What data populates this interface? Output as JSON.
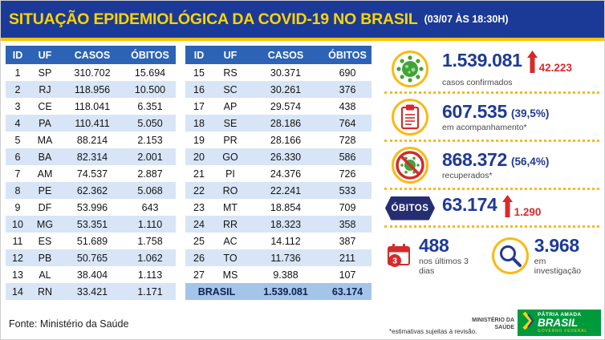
{
  "header": {
    "title": "SITUAÇÃO EPIDEMIOLÓGICA DA COVID-19 NO BRASIL",
    "timestamp": "(03/07 ÀS 18:30H)"
  },
  "chart_data": {
    "type": "table",
    "title": "SITUAÇÃO EPIDEMIOLÓGICA DA COVID-19 NO BRASIL",
    "subtitle": "(03/07 ÀS 18:30H)",
    "columns": [
      "ID",
      "UF",
      "CASOS",
      "ÓBITOS"
    ],
    "rows": [
      [
        "1",
        "SP",
        "310.702",
        "15.694"
      ],
      [
        "2",
        "RJ",
        "118.956",
        "10.500"
      ],
      [
        "3",
        "CE",
        "118.041",
        "6.351"
      ],
      [
        "4",
        "PA",
        "110.411",
        "5.050"
      ],
      [
        "5",
        "MA",
        "88.214",
        "2.153"
      ],
      [
        "6",
        "BA",
        "82.314",
        "2.001"
      ],
      [
        "7",
        "AM",
        "74.537",
        "2.887"
      ],
      [
        "8",
        "PE",
        "62.362",
        "5.068"
      ],
      [
        "9",
        "DF",
        "53.996",
        "643"
      ],
      [
        "10",
        "MG",
        "53.351",
        "1.110"
      ],
      [
        "11",
        "ES",
        "51.689",
        "1.758"
      ],
      [
        "12",
        "PB",
        "50.765",
        "1.062"
      ],
      [
        "13",
        "AL",
        "38.404",
        "1.113"
      ],
      [
        "14",
        "RN",
        "33.421",
        "1.171"
      ],
      [
        "15",
        "RS",
        "30.371",
        "690"
      ],
      [
        "16",
        "SC",
        "30.261",
        "376"
      ],
      [
        "17",
        "AP",
        "29.574",
        "438"
      ],
      [
        "18",
        "SE",
        "28.186",
        "764"
      ],
      [
        "19",
        "PR",
        "28.166",
        "728"
      ],
      [
        "20",
        "GO",
        "26.330",
        "586"
      ],
      [
        "21",
        "PI",
        "24.376",
        "726"
      ],
      [
        "22",
        "RO",
        "22.241",
        "533"
      ],
      [
        "23",
        "MT",
        "18.854",
        "709"
      ],
      [
        "24",
        "RR",
        "18.323",
        "358"
      ],
      [
        "25",
        "AC",
        "14.112",
        "387"
      ],
      [
        "26",
        "TO",
        "11.736",
        "211"
      ],
      [
        "27",
        "MS",
        "9.388",
        "107"
      ]
    ],
    "total_row": [
      "BRASIL",
      "1.539.081",
      "63.174"
    ],
    "summary": {
      "casos_confirmados": "1.539.081",
      "novos_casos": "42.223",
      "em_acompanhamento": "607.535",
      "em_acompanhamento_pct": "(39,5%)",
      "recuperados": "868.372",
      "recuperados_pct": "(56,4%)",
      "obitos": "63.174",
      "novos_obitos": "1.290",
      "obitos_ultimos_3_dias": "488",
      "em_investigacao": "3.968"
    }
  },
  "table": {
    "headers": [
      "ID",
      "UF",
      "CASOS",
      "ÓBITOS"
    ],
    "total": {
      "label": "BRASIL",
      "casos": "1.539.081",
      "obitos": "63.174"
    }
  },
  "stats": {
    "confirmed": {
      "value": "1.539.081",
      "delta": "42.223",
      "label": "casos confirmados"
    },
    "monitoring": {
      "value": "607.535",
      "percent": "(39,5%)",
      "label": "em acompanhamento*"
    },
    "recovered": {
      "value": "868.372",
      "percent": "(56,4%)",
      "label": "recuperados*"
    },
    "deaths": {
      "badge": "ÓBITOS",
      "value": "63.174",
      "delta": "1.290"
    },
    "last3days": {
      "value": "488",
      "label": "nos últimos 3 dias",
      "icon_number": "3"
    },
    "investigation": {
      "value": "3.968",
      "label": "em investigação"
    }
  },
  "footer": {
    "source": "Fonte: Ministério da Saúde",
    "disclaimer": "*estimativas sujeitas à revisão.",
    "ministry_line1": "MINISTÉRIO DA",
    "ministry_line2": "SAÚDE",
    "brand_top": "PÁTRIA AMADA",
    "brand_bottom": "BRASIL",
    "brand_sub": "GOVERNO FEDERAL"
  },
  "colors": {
    "header_blue": "#1b3a97",
    "accent_yellow": "#fdc500",
    "table_header_blue": "#2d63b5",
    "row_alt_blue": "#d7e5f6",
    "total_row_blue": "#a5c4ea",
    "stat_blue": "#1e3a96",
    "alert_red": "#d62b2b",
    "virus_green": "#3fa437",
    "brand_green": "#009a3d"
  }
}
